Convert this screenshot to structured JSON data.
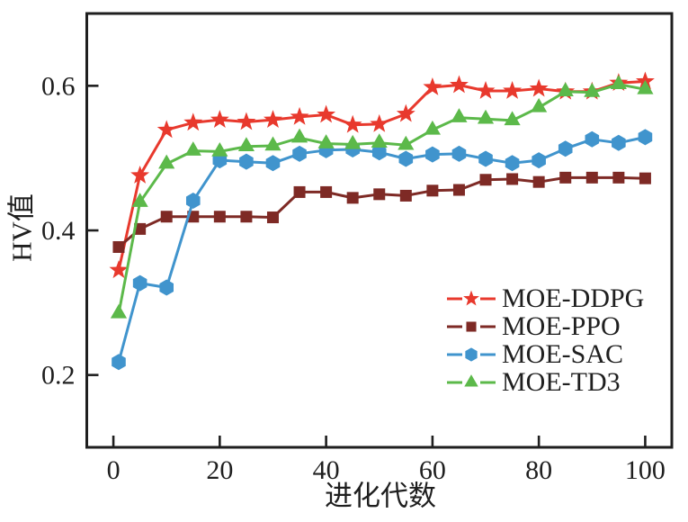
{
  "chart_data": {
    "type": "line",
    "title": "",
    "xlabel": "进化代数",
    "ylabel": "HV值",
    "xlim": [
      -5,
      105
    ],
    "ylim": [
      0.1,
      0.7
    ],
    "xticks": [
      0,
      20,
      40,
      60,
      80,
      100
    ],
    "xtick_labels": [
      "0",
      "20",
      "40",
      "60",
      "80",
      "100"
    ],
    "yticks": [
      0.2,
      0.4,
      0.6
    ],
    "ytick_labels": [
      "0.2",
      "0.4",
      "0.6"
    ],
    "grid": false,
    "legend_position": "inside-middle-right",
    "axis_color": "#1f1f1f",
    "background_color": "#ffffff",
    "x": [
      1,
      5,
      10,
      15,
      20,
      25,
      30,
      35,
      40,
      45,
      50,
      55,
      60,
      65,
      70,
      75,
      80,
      85,
      90,
      95,
      100
    ],
    "series": [
      {
        "name": "MOE-DDPG",
        "color": "#e8392d",
        "marker": "star",
        "values": [
          0.345,
          0.476,
          0.539,
          0.549,
          0.553,
          0.55,
          0.553,
          0.557,
          0.56,
          0.546,
          0.547,
          0.561,
          0.598,
          0.601,
          0.593,
          0.593,
          0.596,
          0.592,
          0.592,
          0.604,
          0.606
        ]
      },
      {
        "name": "MOE-PPO",
        "color": "#7e2a25",
        "marker": "square",
        "values": [
          0.377,
          0.402,
          0.419,
          0.419,
          0.419,
          0.419,
          0.418,
          0.453,
          0.453,
          0.445,
          0.45,
          0.448,
          0.455,
          0.456,
          0.47,
          0.471,
          0.467,
          0.473,
          0.473,
          0.473,
          0.472
        ]
      },
      {
        "name": "MOE-SAC",
        "color": "#4094cd",
        "marker": "hexagon",
        "values": [
          0.218,
          0.327,
          0.321,
          0.441,
          0.497,
          0.495,
          0.493,
          0.506,
          0.511,
          0.512,
          0.508,
          0.499,
          0.505,
          0.506,
          0.499,
          0.493,
          0.497,
          0.513,
          0.526,
          0.521,
          0.529
        ]
      },
      {
        "name": "MOE-TD3",
        "color": "#5cb94a",
        "marker": "triangle",
        "values": [
          0.285,
          0.439,
          0.492,
          0.51,
          0.509,
          0.516,
          0.517,
          0.528,
          0.52,
          0.519,
          0.521,
          0.518,
          0.539,
          0.556,
          0.554,
          0.552,
          0.57,
          0.592,
          0.591,
          0.602,
          0.595
        ]
      }
    ]
  }
}
